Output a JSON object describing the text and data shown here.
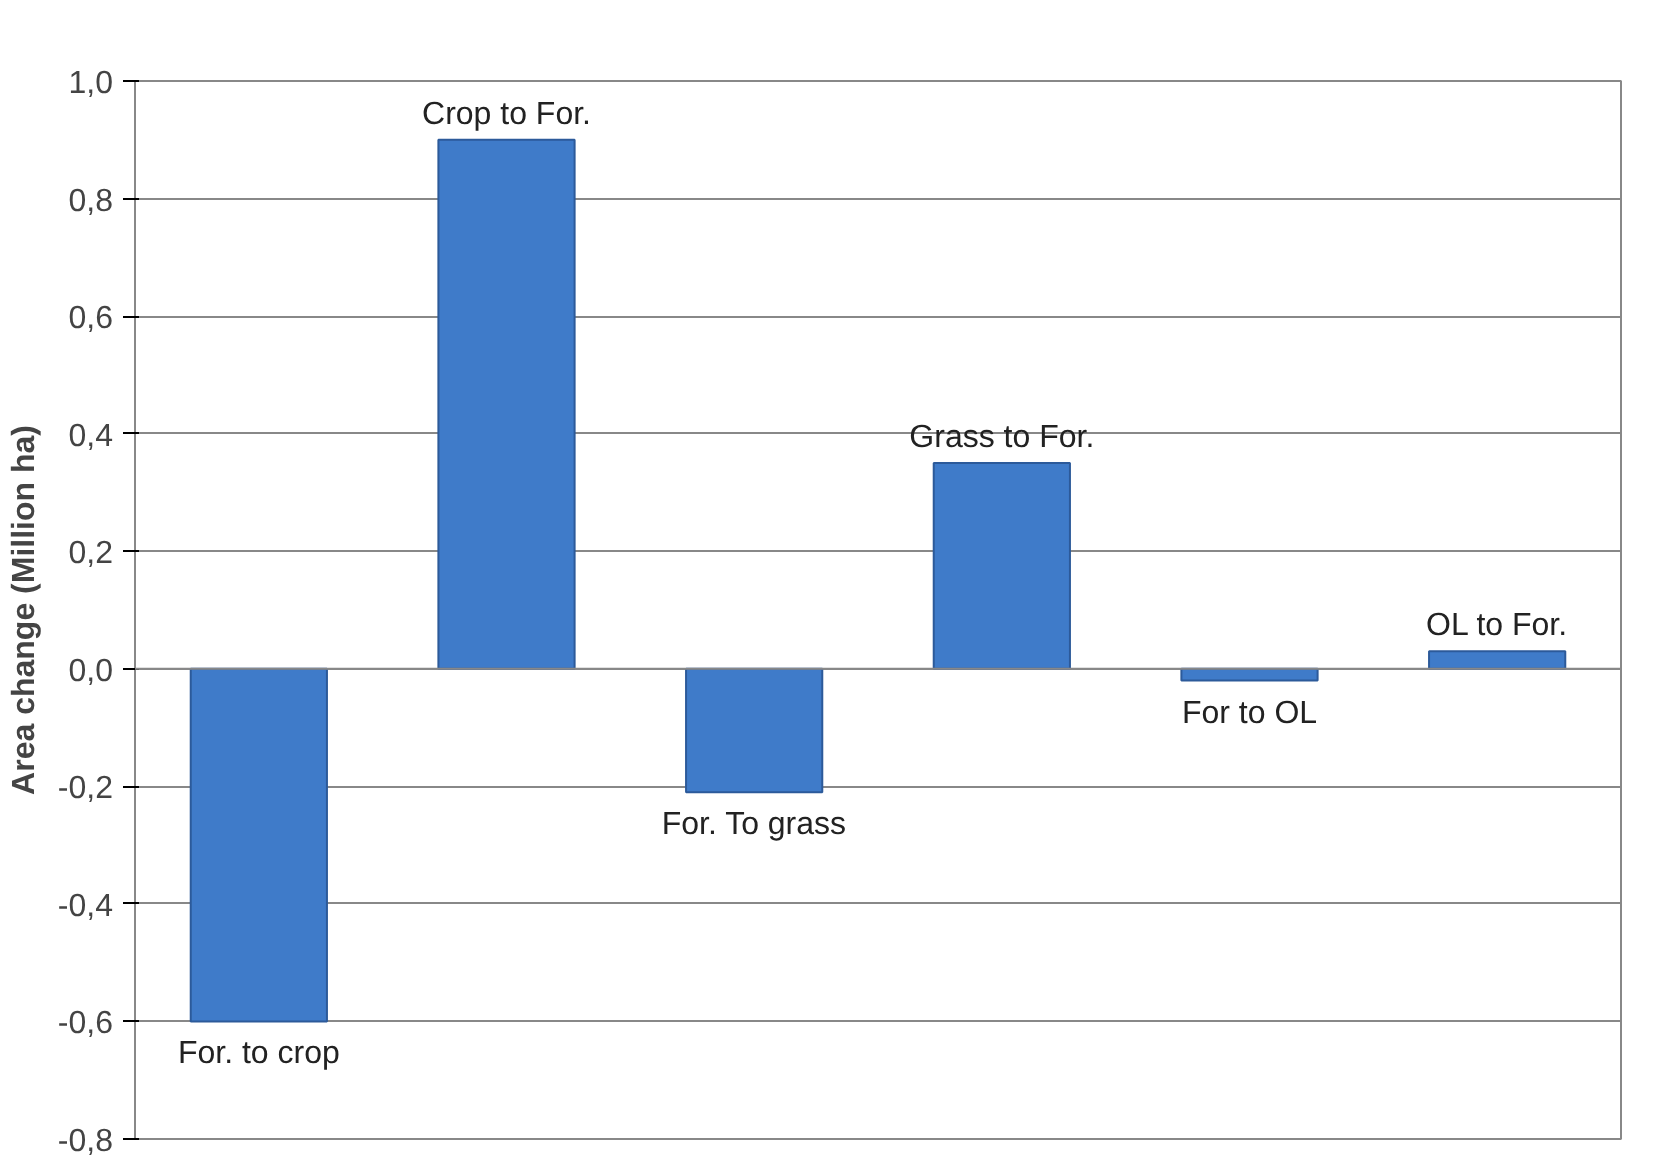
{
  "chart_data": {
    "type": "bar",
    "ylabel": "Area change (Million ha)",
    "categories": [
      "For. to crop",
      "Crop to For.",
      "For. To grass",
      "Grass to For.",
      "For to OL",
      "OL to For."
    ],
    "values": [
      -0.6,
      0.9,
      -0.21,
      0.35,
      -0.02,
      0.03
    ],
    "color": "#3f7bc9",
    "ylim": [
      -0.8,
      1.0
    ],
    "yticks": [
      {
        "value": -0.8,
        "label": "-0,8"
      },
      {
        "value": -0.6,
        "label": "-0,6"
      },
      {
        "value": -0.4,
        "label": "-0,4"
      },
      {
        "value": -0.2,
        "label": "-0,2"
      },
      {
        "value": 0.0,
        "label": "0,0"
      },
      {
        "value": 0.2,
        "label": "0,2"
      },
      {
        "value": 0.4,
        "label": "0,4"
      },
      {
        "value": 0.6,
        "label": "0,6"
      },
      {
        "value": 0.8,
        "label": "0,8"
      },
      {
        "value": 1.0,
        "label": "1,0"
      }
    ],
    "grid": "y"
  }
}
